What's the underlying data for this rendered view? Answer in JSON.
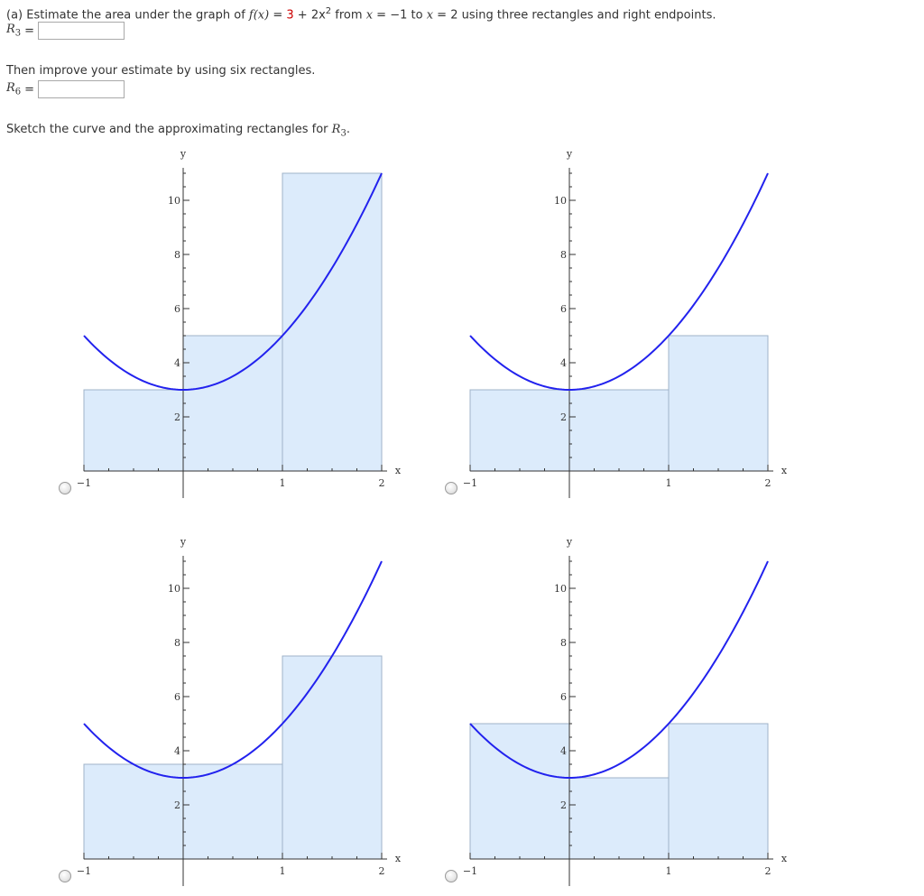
{
  "part_a": {
    "prefix": "(a) Estimate the area under the graph of ",
    "fx": "f(x)",
    "eq": " = ",
    "three": "3",
    "plus": " + 2x",
    "sq": "2",
    "mid": " from ",
    "x1": "x",
    "eq2": " = ",
    "a": "−1",
    "to": " to ",
    "x2": "x",
    "eq3": " = ",
    "b": "2",
    "suffix": " using three rectangles and right endpoints."
  },
  "r3": {
    "label": "R",
    "sub": "3",
    "eq": "=",
    "value": ""
  },
  "improve_text": "Then improve your estimate by using six rectangles.",
  "r6": {
    "label": "R",
    "sub": "6",
    "eq": "=",
    "value": ""
  },
  "sketch": {
    "prefix": "Sketch the curve and the approximating rectangles for ",
    "label": "R",
    "sub": "3",
    "suffix": "."
  },
  "axis": {
    "xlabel": "x",
    "ylabel": "y",
    "xticks": [
      {
        "v": -1,
        "t": "−1"
      },
      {
        "v": 1,
        "t": "1"
      },
      {
        "v": 2,
        "t": "2"
      }
    ],
    "yticks": [
      {
        "v": 2,
        "t": "2"
      },
      {
        "v": 4,
        "t": "4"
      },
      {
        "v": 6,
        "t": "6"
      },
      {
        "v": 8,
        "t": "8"
      },
      {
        "v": 10,
        "t": "10"
      }
    ]
  },
  "colors": {
    "curve": "#2222ee",
    "rect_fill": "#dcebfb",
    "rect_stroke": "#9fb3c8",
    "axis": "#333333"
  },
  "chart_data": [
    {
      "type": "area",
      "function": "3 + 2x^2",
      "xlim": [
        -1,
        2
      ],
      "rects": [
        {
          "x0": -1,
          "x1": 0,
          "h": 3
        },
        {
          "x0": 0,
          "x1": 1,
          "h": 5
        },
        {
          "x0": 1,
          "x1": 2,
          "h": 11
        }
      ]
    },
    {
      "type": "area",
      "function": "3 + 2x^2",
      "xlim": [
        -1,
        2
      ],
      "rects": [
        {
          "x0": -1,
          "x1": 1,
          "h": 3
        },
        {
          "x0": 1,
          "x1": 2,
          "h": 5
        }
      ]
    },
    {
      "type": "area",
      "function": "3 + 2x^2",
      "xlim": [
        -1,
        2
      ],
      "rects": [
        {
          "x0": -1,
          "x1": 1,
          "h": 3.5
        },
        {
          "x0": 1,
          "x1": 2,
          "h": 7.5
        }
      ]
    },
    {
      "type": "area",
      "function": "3 + 2x^2",
      "xlim": [
        -1,
        2
      ],
      "rects": [
        {
          "x0": -1,
          "x1": 0,
          "h": 5
        },
        {
          "x0": 0,
          "x1": 1,
          "h": 3
        },
        {
          "x0": 1,
          "x1": 2,
          "h": 5
        }
      ]
    }
  ]
}
